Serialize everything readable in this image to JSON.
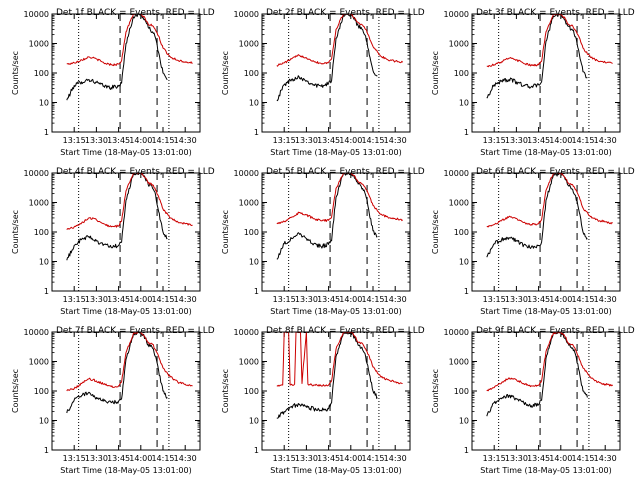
{
  "chart_data": {
    "type": "line",
    "layout": "3x3 grid of panels",
    "x_ticks": [
      "13:15",
      "13:30",
      "13:45",
      "14:00",
      "14:15",
      "14:30"
    ],
    "x_tick_minutes": [
      15,
      30,
      45,
      60,
      75,
      90
    ],
    "xlim_minutes": [
      0,
      100
    ],
    "x_origin_label": "13:00",
    "xlabel": "Start Time (18-May-05 13:01:00)",
    "ylabel": "Counts/sec",
    "y_scale": "log",
    "ylim": [
      1,
      10000
    ],
    "y_ticks": [
      1,
      10,
      100,
      1000,
      10000
    ],
    "y_tick_labels": [
      "1",
      "10",
      "100",
      "1000",
      "10000"
    ],
    "dotted_vlines_minutes": [
      18,
      79
    ],
    "dashed_vlines_minutes": [
      46,
      71
    ],
    "colors": {
      "events": "#000000",
      "lld": "#cc0000"
    },
    "panels": [
      {
        "title": "Det 1f BLACK = Events, RED = LLD",
        "series": [
          {
            "name": "Events",
            "color": "#000000",
            "x": [
              10,
              15,
              20,
              25,
              30,
              35,
              40,
              45,
              47,
              50,
              55,
              60,
              63,
              65,
              68,
              70,
              72,
              75,
              78
            ],
            "y": [
              12,
              38,
              50,
              60,
              48,
              36,
              32,
              36,
              45,
              1000,
              8000,
              10000,
              6000,
              3500,
              2500,
              1500,
              500,
              100,
              60
            ]
          },
          {
            "name": "LLD",
            "color": "#cc0000",
            "x": [
              10,
              15,
              20,
              25,
              30,
              35,
              40,
              45,
              47,
              50,
              55,
              60,
              63,
              65,
              68,
              70,
              72,
              75,
              80,
              85,
              90,
              95
            ],
            "y": [
              200,
              220,
              280,
              350,
              300,
              220,
              190,
              200,
              260,
              2500,
              10000,
              10000,
              7000,
              4500,
              4000,
              2800,
              1800,
              700,
              350,
              270,
              240,
              220
            ]
          }
        ]
      },
      {
        "title": "Det 2f BLACK = Events, RED = LLD",
        "series": [
          {
            "name": "Events",
            "color": "#000000",
            "x": [
              10,
              15,
              20,
              25,
              30,
              35,
              40,
              45,
              47,
              50,
              55,
              60,
              63,
              65,
              68,
              70,
              72,
              75,
              78
            ],
            "y": [
              12,
              40,
              60,
              75,
              55,
              40,
              35,
              45,
              55,
              1500,
              9000,
              10000,
              6000,
              4000,
              3000,
              1800,
              600,
              120,
              80
            ]
          },
          {
            "name": "LLD",
            "color": "#cc0000",
            "x": [
              10,
              15,
              20,
              25,
              30,
              35,
              40,
              45,
              47,
              50,
              55,
              60,
              63,
              65,
              68,
              70,
              72,
              75,
              80,
              85,
              90,
              95
            ],
            "y": [
              180,
              220,
              300,
              400,
              330,
              250,
              210,
              230,
              300,
              3000,
              10000,
              10000,
              7000,
              5000,
              4200,
              3000,
              1900,
              800,
              380,
              280,
              250,
              230
            ]
          }
        ]
      },
      {
        "title": "Det 3f BLACK = Events, RED = LLD",
        "series": [
          {
            "name": "Events",
            "color": "#000000",
            "x": [
              10,
              15,
              20,
              25,
              30,
              35,
              40,
              45,
              47,
              50,
              55,
              60,
              63,
              65,
              68,
              70,
              72,
              75,
              78
            ],
            "y": [
              14,
              40,
              55,
              60,
              50,
              38,
              34,
              40,
              50,
              1200,
              8500,
              10000,
              6000,
              3800,
              2800,
              1700,
              600,
              110,
              70
            ]
          },
          {
            "name": "LLD",
            "color": "#cc0000",
            "x": [
              10,
              15,
              20,
              25,
              30,
              35,
              40,
              45,
              47,
              50,
              55,
              60,
              63,
              65,
              68,
              70,
              72,
              75,
              80,
              85,
              90,
              95
            ],
            "y": [
              170,
              190,
              240,
              320,
              280,
              210,
              180,
              190,
              250,
              2500,
              10000,
              10000,
              7000,
              4500,
              4000,
              2800,
              1800,
              700,
              340,
              260,
              230,
              210
            ]
          }
        ]
      },
      {
        "title": "Det 4f BLACK = Events, RED = LLD",
        "series": [
          {
            "name": "Events",
            "color": "#000000",
            "x": [
              10,
              15,
              20,
              25,
              30,
              35,
              40,
              45,
              47,
              50,
              55,
              60,
              63,
              65,
              68,
              70,
              72,
              75,
              78
            ],
            "y": [
              11,
              35,
              55,
              70,
              50,
              38,
              30,
              35,
              45,
              1200,
              9000,
              10000,
              6500,
              4000,
              3000,
              1800,
              500,
              100,
              60
            ]
          },
          {
            "name": "LLD",
            "color": "#cc0000",
            "x": [
              10,
              15,
              20,
              25,
              30,
              35,
              40,
              45,
              47,
              50,
              55,
              60,
              63,
              65,
              68,
              70,
              72,
              75,
              80,
              85,
              90,
              95
            ],
            "y": [
              120,
              150,
              200,
              300,
              260,
              190,
              150,
              160,
              230,
              2500,
              10000,
              10000,
              7000,
              4500,
              4000,
              2600,
              1600,
              600,
              300,
              220,
              190,
              170
            ]
          }
        ]
      },
      {
        "title": "Det 5f BLACK = Events, RED = LLD",
        "series": [
          {
            "name": "Events",
            "color": "#000000",
            "x": [
              10,
              15,
              20,
              25,
              30,
              35,
              40,
              45,
              47,
              50,
              55,
              60,
              63,
              65,
              68,
              70,
              72,
              75,
              78
            ],
            "y": [
              12,
              40,
              60,
              90,
              60,
              40,
              32,
              38,
              50,
              1500,
              9500,
              10000,
              6500,
              4200,
              3000,
              1800,
              600,
              110,
              70
            ]
          },
          {
            "name": "LLD",
            "color": "#cc0000",
            "x": [
              10,
              15,
              20,
              25,
              30,
              35,
              40,
              45,
              47,
              50,
              55,
              60,
              63,
              65,
              68,
              70,
              72,
              75,
              80,
              85,
              90,
              95
            ],
            "y": [
              200,
              230,
              320,
              450,
              380,
              280,
              240,
              250,
              320,
              3000,
              10000,
              10000,
              7500,
              5000,
              4200,
              3000,
              1900,
              800,
              400,
              320,
              280,
              260
            ]
          }
        ]
      },
      {
        "title": "Det 6f BLACK = Events, RED = LLD",
        "series": [
          {
            "name": "Events",
            "color": "#000000",
            "x": [
              10,
              15,
              20,
              25,
              30,
              35,
              40,
              45,
              47,
              50,
              55,
              60,
              63,
              65,
              68,
              70,
              72,
              75,
              78
            ],
            "y": [
              14,
              40,
              55,
              65,
              50,
              36,
              30,
              35,
              45,
              1200,
              8500,
              10000,
              6000,
              3800,
              2800,
              1700,
              600,
              100,
              60
            ]
          },
          {
            "name": "LLD",
            "color": "#cc0000",
            "x": [
              10,
              15,
              20,
              25,
              30,
              35,
              40,
              45,
              47,
              50,
              55,
              60,
              63,
              65,
              68,
              70,
              72,
              75,
              80,
              85,
              90,
              95
            ],
            "y": [
              150,
              180,
              240,
              330,
              290,
              210,
              180,
              190,
              260,
              2600,
              10000,
              10000,
              7000,
              4600,
              4000,
              2700,
              1700,
              650,
              330,
              250,
              220,
              200
            ]
          }
        ]
      },
      {
        "title": "Det 7f BLACK = Events, RED = LLD",
        "series": [
          {
            "name": "Events",
            "color": "#000000",
            "x": [
              10,
              15,
              20,
              25,
              30,
              35,
              40,
              45,
              47,
              50,
              55,
              60,
              63,
              65,
              68,
              70,
              72,
              75,
              78
            ],
            "y": [
              18,
              50,
              70,
              90,
              60,
              45,
              40,
              45,
              55,
              1200,
              8000,
              9500,
              6000,
              3800,
              2800,
              1500,
              500,
              100,
              60
            ]
          },
          {
            "name": "LLD",
            "color": "#cc0000",
            "x": [
              10,
              15,
              20,
              25,
              30,
              35,
              40,
              45,
              47,
              50,
              55,
              60,
              63,
              65,
              68,
              70,
              72,
              75,
              80,
              85,
              90,
              95
            ],
            "y": [
              100,
              120,
              180,
              260,
              220,
              170,
              140,
              150,
              200,
              2000,
              9000,
              9800,
              6500,
              4200,
              3800,
              2500,
              1500,
              600,
              300,
              200,
              170,
              150
            ]
          }
        ]
      },
      {
        "title": "Det 8f BLACK = Events, RED = LLD",
        "series": [
          {
            "name": "Events",
            "color": "#000000",
            "x": [
              10,
              15,
              20,
              25,
              30,
              35,
              40,
              45,
              47,
              50,
              55,
              60,
              63,
              65,
              68,
              70,
              72,
              75,
              78
            ],
            "y": [
              12,
              20,
              30,
              35,
              28,
              25,
              22,
              25,
              40,
              1500,
              9000,
              10000,
              6000,
              3500,
              2500,
              1500,
              500,
              100,
              60
            ]
          },
          {
            "name": "LLD",
            "color": "#cc0000",
            "x": [
              10,
              14,
              15,
              18,
              19,
              22,
              23,
              26,
              27,
              30,
              31,
              35,
              40,
              45,
              47,
              50,
              55,
              60,
              63,
              65,
              68,
              70,
              72,
              75,
              80,
              85,
              90,
              95
            ],
            "y": [
              150,
              160,
              10000,
              10000,
              160,
              170,
              10000,
              10000,
              180,
              10000,
              170,
              160,
              150,
              160,
              220,
              2600,
              10000,
              10000,
              7000,
              4500,
              4000,
              2700,
              1700,
              650,
              320,
              240,
              200,
              180
            ]
          }
        ]
      },
      {
        "title": "Det 9f BLACK = Events, RED = LLD",
        "series": [
          {
            "name": "Events",
            "color": "#000000",
            "x": [
              10,
              15,
              20,
              25,
              30,
              35,
              40,
              45,
              47,
              50,
              55,
              60,
              63,
              65,
              68,
              70,
              72,
              75,
              78
            ],
            "y": [
              14,
              40,
              55,
              70,
              55,
              40,
              32,
              36,
              48,
              1300,
              9000,
              10000,
              6200,
              4000,
              2900,
              1700,
              550,
              100,
              60
            ]
          },
          {
            "name": "LLD",
            "color": "#cc0000",
            "x": [
              10,
              15,
              20,
              25,
              30,
              35,
              40,
              45,
              47,
              50,
              55,
              60,
              63,
              65,
              68,
              70,
              72,
              75,
              80,
              85,
              90,
              95
            ],
            "y": [
              100,
              130,
              190,
              280,
              240,
              180,
              150,
              160,
              220,
              2200,
              9500,
              10000,
              6800,
              4300,
              3800,
              2500,
              1500,
              600,
              300,
              200,
              170,
              150
            ]
          }
        ]
      }
    ]
  }
}
